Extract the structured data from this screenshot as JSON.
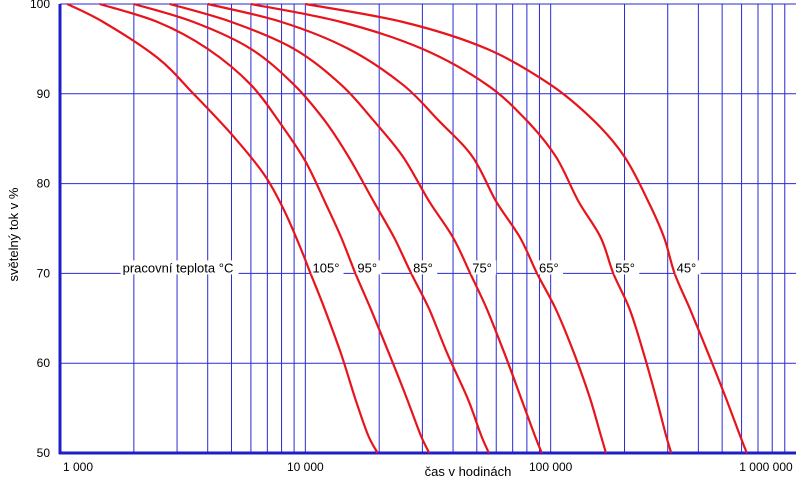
{
  "chart_data": {
    "type": "line",
    "title": "",
    "xlabel": "čas v hodinách",
    "ylabel": "světelný tok v %",
    "x_scale": "log",
    "xlim": [
      1000,
      1000000
    ],
    "ylim": [
      50,
      100
    ],
    "x_ticks": [
      {
        "value": 1000,
        "label": "1 000"
      },
      {
        "value": 10000,
        "label": "10 000"
      },
      {
        "value": 100000,
        "label": "100 000"
      },
      {
        "value": 1000000,
        "label": "1 000 000"
      }
    ],
    "y_ticks": [
      {
        "value": 50,
        "label": "50"
      },
      {
        "value": 60,
        "label": "60"
      },
      {
        "value": 70,
        "label": "70"
      },
      {
        "value": 80,
        "label": "80"
      },
      {
        "value": 90,
        "label": "90"
      },
      {
        "value": 100,
        "label": "100"
      }
    ],
    "grid": true,
    "annotation": "pracovní teplota °C",
    "series": [
      {
        "name": "105°",
        "points": [
          [
            1070,
            100
          ],
          [
            1500,
            98
          ],
          [
            2500,
            94
          ],
          [
            3500,
            90
          ],
          [
            5000,
            85.5
          ],
          [
            6800,
            81
          ],
          [
            8200,
            77
          ],
          [
            9500,
            73
          ],
          [
            10500,
            70
          ],
          [
            12000,
            66
          ],
          [
            14000,
            61
          ],
          [
            16000,
            56
          ],
          [
            18000,
            52
          ],
          [
            19700,
            50
          ]
        ]
      },
      {
        "name": "95°",
        "points": [
          [
            1450,
            100
          ],
          [
            2500,
            98
          ],
          [
            4000,
            95
          ],
          [
            6000,
            91
          ],
          [
            8000,
            86.5
          ],
          [
            10000,
            82.5
          ],
          [
            12000,
            78
          ],
          [
            14000,
            74
          ],
          [
            16000,
            70
          ],
          [
            18500,
            66
          ],
          [
            22000,
            61
          ],
          [
            26000,
            56
          ],
          [
            29500,
            52
          ],
          [
            32000,
            50
          ]
        ]
      },
      {
        "name": "85°",
        "points": [
          [
            2000,
            100
          ],
          [
            3500,
            98
          ],
          [
            6000,
            95
          ],
          [
            9000,
            91
          ],
          [
            12000,
            87
          ],
          [
            15000,
            83
          ],
          [
            19000,
            78
          ],
          [
            23000,
            74
          ],
          [
            27000,
            70
          ],
          [
            32000,
            66
          ],
          [
            38000,
            61
          ],
          [
            46000,
            56
          ],
          [
            52000,
            52
          ],
          [
            56000,
            50
          ]
        ]
      },
      {
        "name": "75°",
        "points": [
          [
            2800,
            100
          ],
          [
            5000,
            98
          ],
          [
            9000,
            95
          ],
          [
            14000,
            91
          ],
          [
            19000,
            87
          ],
          [
            25000,
            83
          ],
          [
            32000,
            78
          ],
          [
            40000,
            74
          ],
          [
            47000,
            70
          ],
          [
            55000,
            66
          ],
          [
            65000,
            61
          ],
          [
            76000,
            56
          ],
          [
            86000,
            52
          ],
          [
            92000,
            50
          ]
        ]
      },
      {
        "name": "65°",
        "points": [
          [
            4000,
            100
          ],
          [
            8000,
            98
          ],
          [
            15000,
            95
          ],
          [
            25000,
            91
          ],
          [
            35000,
            87
          ],
          [
            48000,
            83
          ],
          [
            60000,
            78
          ],
          [
            75000,
            74
          ],
          [
            88000,
            70
          ],
          [
            105000,
            66
          ],
          [
            125000,
            61
          ],
          [
            145000,
            56
          ],
          [
            160000,
            52
          ],
          [
            168000,
            50
          ]
        ]
      },
      {
        "name": "55°",
        "points": [
          [
            6000,
            100
          ],
          [
            14000,
            98
          ],
          [
            30000,
            95
          ],
          [
            55000,
            91
          ],
          [
            80000,
            87
          ],
          [
            105000,
            83
          ],
          [
            130000,
            78
          ],
          [
            160000,
            74
          ],
          [
            180000,
            70
          ],
          [
            210000,
            66
          ],
          [
            240000,
            61
          ],
          [
            270000,
            56
          ],
          [
            295000,
            52
          ],
          [
            310000,
            50
          ]
        ]
      },
      {
        "name": "45°",
        "points": [
          [
            10000,
            100
          ],
          [
            25000,
            98
          ],
          [
            55000,
            95
          ],
          [
            100000,
            91
          ],
          [
            150000,
            87
          ],
          [
            200000,
            83
          ],
          [
            250000,
            78
          ],
          [
            290000,
            74
          ],
          [
            320000,
            70
          ],
          [
            370000,
            66
          ],
          [
            440000,
            61
          ],
          [
            520000,
            56
          ],
          [
            590000,
            52
          ],
          [
            630000,
            50
          ]
        ]
      }
    ],
    "colors": {
      "curve": "#e8141c",
      "grid": "#2a2ad6",
      "axis": "#1f1fc8"
    }
  }
}
